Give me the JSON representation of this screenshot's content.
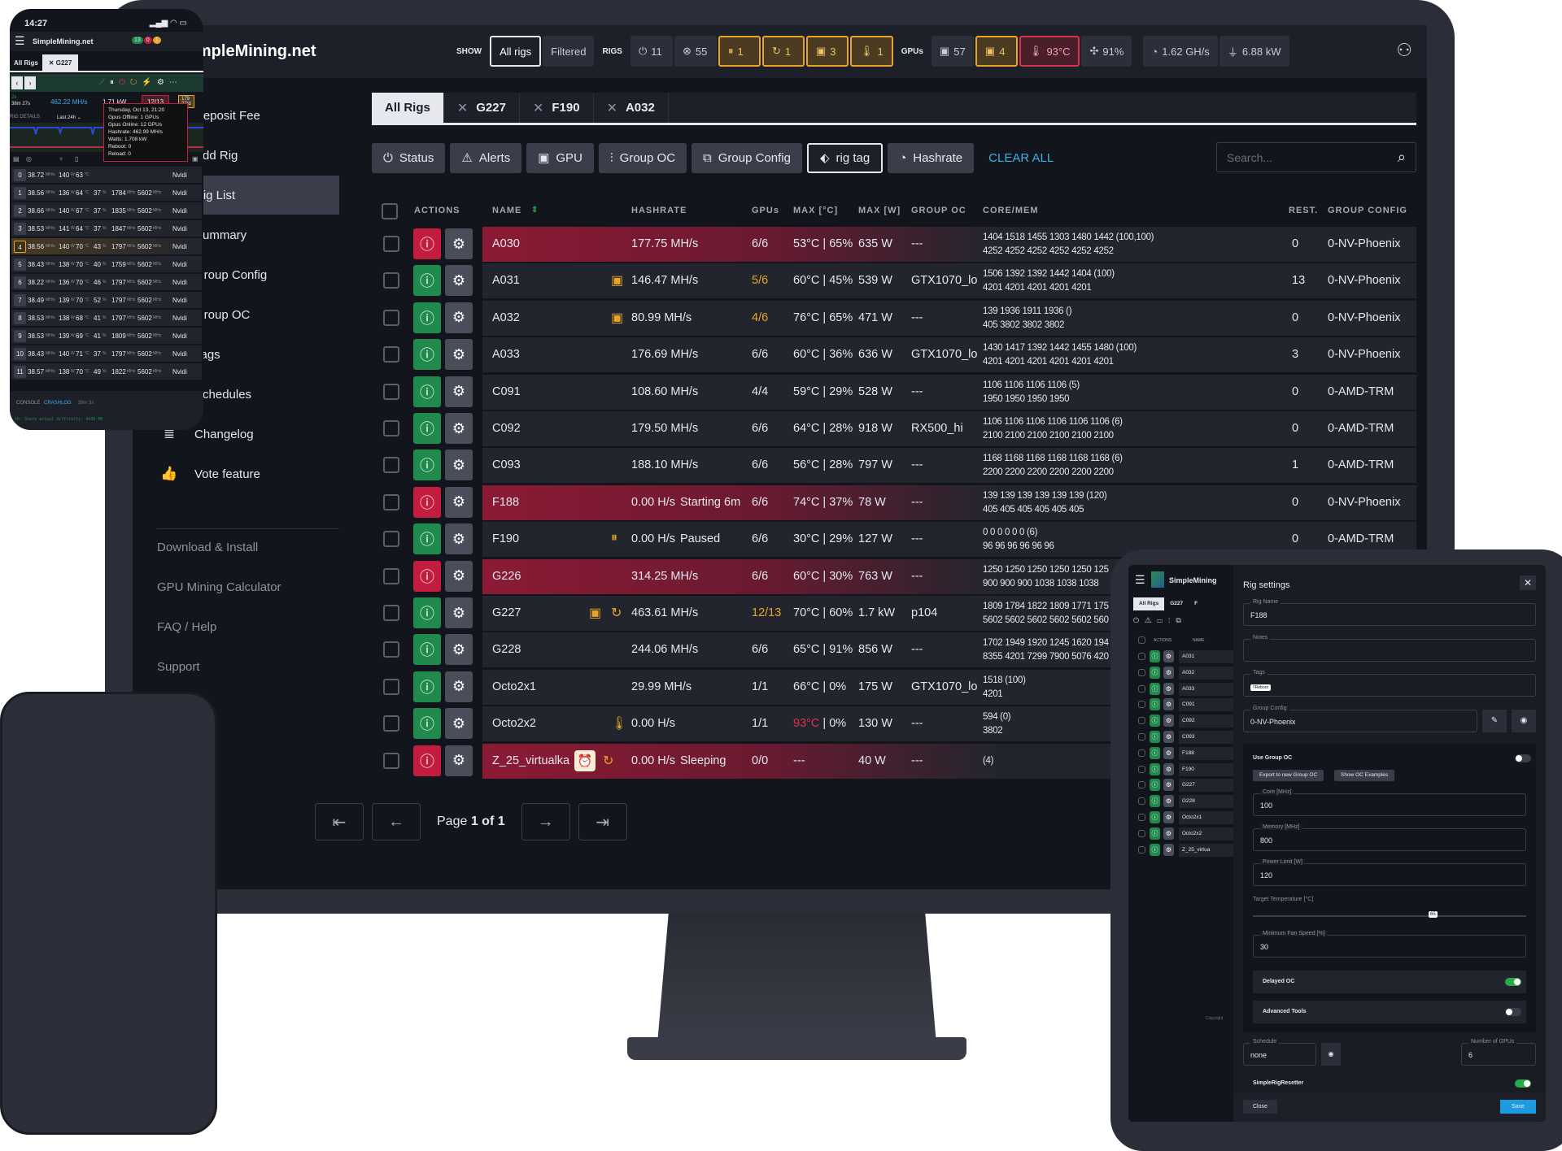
{
  "colors": {
    "accent": "#3ab0e8",
    "success": "#1f8a4c",
    "danger": "#c21d3e",
    "warning": "#e8a525",
    "background": "#13151d"
  },
  "header": {
    "brand": "SimpleMining.net",
    "show_label": "SHOW",
    "show_all": "All rigs",
    "show_filtered": "Filtered",
    "rigs_label": "RIGS",
    "rig_stats": [
      {
        "icon": "power-icon",
        "value": "11",
        "state": "normal"
      },
      {
        "icon": "offline-icon",
        "value": "55",
        "state": "normal"
      },
      {
        "icon": "pause-icon",
        "value": "1",
        "state": "warning"
      },
      {
        "icon": "reboot-icon",
        "value": "1",
        "state": "warning"
      },
      {
        "icon": "gpu-icon",
        "value": "3",
        "state": "warning"
      },
      {
        "icon": "thermometer-icon",
        "value": "1",
        "state": "warning"
      }
    ],
    "gpus_label": "GPUs",
    "gpu_stats": [
      {
        "icon": "gpu-icon",
        "value": "57",
        "state": "normal"
      },
      {
        "icon": "gpu-icon",
        "value": "4",
        "state": "warning"
      },
      {
        "icon": "temperature-high-icon",
        "value": "93°C",
        "state": "danger"
      },
      {
        "icon": "fan-icon",
        "value": "91%",
        "state": "normal"
      }
    ],
    "totals": [
      {
        "icon": "speedometer-icon",
        "value": "1.62 GH/s"
      },
      {
        "icon": "plug-icon",
        "value": "6.88 kW"
      }
    ]
  },
  "sidebar": {
    "items": [
      {
        "icon": "wallet-icon",
        "label": "Deposit Fee"
      },
      {
        "icon": "plus-icon",
        "label": "Add Rig"
      },
      {
        "icon": "list-icon",
        "label": "Rig List",
        "active": true
      },
      {
        "icon": "chart-icon",
        "label": "Summary"
      },
      {
        "icon": "group-config-icon",
        "label": "Group Config"
      },
      {
        "icon": "sliders-icon",
        "label": "Group OC"
      },
      {
        "icon": "tag-icon",
        "label": "Tags"
      },
      {
        "icon": "alarm-clock-icon",
        "label": "Schedules"
      },
      {
        "icon": "changelog-icon",
        "label": "Changelog"
      },
      {
        "icon": "thumbs-up-icon",
        "label": "Vote feature"
      }
    ],
    "links": [
      "Download & Install",
      "GPU Mining Calculator",
      "FAQ / Help",
      "Support"
    ]
  },
  "tabs": [
    {
      "label": "All Rigs",
      "active": true
    },
    {
      "label": "G227"
    },
    {
      "label": "F190"
    },
    {
      "label": "A032"
    }
  ],
  "filters": [
    {
      "icon": "power-icon",
      "label": "Status"
    },
    {
      "icon": "alert-icon",
      "label": "Alerts"
    },
    {
      "icon": "gpu-icon",
      "label": "GPU"
    },
    {
      "icon": "sliders-icon",
      "label": "Group OC"
    },
    {
      "icon": "group-config-icon",
      "label": "Group Config"
    },
    {
      "icon": "tag-icon",
      "label": "rig tag",
      "active": true
    },
    {
      "icon": "speedometer-icon",
      "label": "Hashrate"
    }
  ],
  "clear_all": "CLEAR ALL",
  "search": {
    "placeholder": "Search...",
    "value": ""
  },
  "table": {
    "columns": [
      "ACTIONS",
      "NAME",
      "HASHRATE",
      "GPUs",
      "MAX [°C]",
      "MAX [W]",
      "GROUP OC",
      "CORE/MEM",
      "REST.",
      "GROUP CONFIG"
    ],
    "rows": [
      {
        "name": "A030",
        "status": "red",
        "icons": [],
        "hashrate": "177.75 MH/s",
        "note": "",
        "gpus": "6/6",
        "gpus_warn": false,
        "temp": "53°C",
        "fan": "65%",
        "power": "635 W",
        "group_oc": "---",
        "core": "1404 1518 1455 1303 1480 1442 (100,100)",
        "mem": "4252 4252 4252 4252 4252 4252",
        "rest": "0",
        "group_config": "0-NV-Phoenix"
      },
      {
        "name": "A031",
        "status": "green",
        "icons": [
          "gpu-warning-icon"
        ],
        "hashrate": "146.47 MH/s",
        "note": "",
        "gpus": "5/6",
        "gpus_warn": true,
        "temp": "60°C",
        "fan": "45%",
        "power": "539 W",
        "group_oc": "GTX1070_lo",
        "core": "1506 1392 1392 1442 1404 (100)",
        "mem": "4201 4201 4201 4201 4201",
        "rest": "13",
        "group_config": "0-NV-Phoenix"
      },
      {
        "name": "A032",
        "status": "green",
        "icons": [
          "gpu-warning-icon"
        ],
        "hashrate": "80.99 MH/s",
        "note": "",
        "gpus": "4/6",
        "gpus_warn": true,
        "temp": "76°C",
        "fan": "65%",
        "power": "471 W",
        "group_oc": "---",
        "core": "139 1936 1911 1936 ()",
        "mem": "405 3802 3802 3802",
        "rest": "0",
        "group_config": "0-NV-Phoenix"
      },
      {
        "name": "A033",
        "status": "green",
        "icons": [],
        "hashrate": "176.69 MH/s",
        "note": "",
        "gpus": "6/6",
        "gpus_warn": false,
        "temp": "60°C",
        "fan": "36%",
        "power": "636 W",
        "group_oc": "GTX1070_lo",
        "core": "1430 1417 1392 1442 1455 1480 (100)",
        "mem": "4201 4201 4201 4201 4201 4201",
        "rest": "3",
        "group_config": "0-NV-Phoenix"
      },
      {
        "name": "C091",
        "status": "green",
        "icons": [],
        "hashrate": "108.60 MH/s",
        "note": "",
        "gpus": "4/4",
        "gpus_warn": false,
        "temp": "59°C",
        "fan": "29%",
        "power": "528 W",
        "group_oc": "---",
        "core": "1106 1106 1106 1106 (5)",
        "mem": "1950 1950 1950 1950",
        "rest": "0",
        "group_config": "0-AMD-TRM"
      },
      {
        "name": "C092",
        "status": "green",
        "icons": [],
        "hashrate": "179.50 MH/s",
        "note": "",
        "gpus": "6/6",
        "gpus_warn": false,
        "temp": "64°C",
        "fan": "28%",
        "power": "918 W",
        "group_oc": "RX500_hi",
        "core": "1106 1106 1106 1106 1106 1106 (6)",
        "mem": "2100 2100 2100 2100 2100 2100",
        "rest": "0",
        "group_config": "0-AMD-TRM"
      },
      {
        "name": "C093",
        "status": "green",
        "icons": [],
        "hashrate": "188.10 MH/s",
        "note": "",
        "gpus": "6/6",
        "gpus_warn": false,
        "temp": "56°C",
        "fan": "28%",
        "power": "797 W",
        "group_oc": "---",
        "core": "1168 1168 1168 1168 1168 1168 (6)",
        "mem": "2200 2200 2200 2200 2200 2200",
        "rest": "1",
        "group_config": "0-AMD-TRM"
      },
      {
        "name": "F188",
        "status": "red",
        "icons": [],
        "hashrate": "0.00 H/s",
        "note": "Starting 6m",
        "gpus": "6/6",
        "gpus_warn": false,
        "temp": "74°C",
        "fan": "37%",
        "power": "78 W",
        "group_oc": "---",
        "core": "139 139 139 139 139 139 (120)",
        "mem": "405 405 405 405 405 405",
        "rest": "0",
        "group_config": "0-NV-Phoenix"
      },
      {
        "name": "F190",
        "status": "green",
        "icons": [
          "pause-icon"
        ],
        "hashrate": "0.00 H/s",
        "note": "Paused",
        "gpus": "6/6",
        "gpus_warn": false,
        "temp": "30°C",
        "fan": "29%",
        "power": "127 W",
        "group_oc": "---",
        "core": "0 0 0 0 0 0 (6)",
        "mem": "96 96 96 96 96 96",
        "rest": "0",
        "group_config": "0-AMD-TRM"
      },
      {
        "name": "G226",
        "status": "red",
        "icons": [],
        "hashrate": "314.25 MH/s",
        "note": "",
        "gpus": "6/6",
        "gpus_warn": false,
        "temp": "60°C",
        "fan": "30%",
        "power": "763 W",
        "group_oc": "---",
        "core": "1250 1250 1250 1250 1250 125",
        "mem": "900 900 900 1038 1038 1038",
        "rest": "",
        "group_config": ""
      },
      {
        "name": "G227",
        "status": "green",
        "icons": [
          "gpu-warning-icon",
          "reload-icon"
        ],
        "hashrate": "463.61 MH/s",
        "note": "",
        "gpus": "12/13",
        "gpus_warn": true,
        "temp": "70°C",
        "fan": "60%",
        "power": "1.7 kW",
        "group_oc": "p104",
        "core": "1809 1784 1822 1809 1771 175",
        "mem": "5602 5602 5602 5602 5602 560",
        "rest": "",
        "group_config": ""
      },
      {
        "name": "G228",
        "status": "green",
        "icons": [],
        "hashrate": "244.06 MH/s",
        "note": "",
        "gpus": "6/6",
        "gpus_warn": false,
        "temp": "65°C",
        "fan": "91%",
        "power": "856 W",
        "group_oc": "---",
        "core": "1702 1949 1920 1245 1620 194",
        "mem": "8355 4201 7299 7900 5076 420",
        "rest": "",
        "group_config": ""
      },
      {
        "name": "Octo2x1",
        "status": "green",
        "icons": [],
        "hashrate": "29.99 MH/s",
        "note": "",
        "gpus": "1/1",
        "gpus_warn": false,
        "temp": "66°C",
        "fan": "0%",
        "power": "175 W",
        "group_oc": "GTX1070_lo",
        "core": "1518 (100)",
        "mem": "4201",
        "rest": "",
        "group_config": ""
      },
      {
        "name": "Octo2x2",
        "status": "green",
        "icons": [
          "temperature-high-icon"
        ],
        "hashrate": "0.00 H/s",
        "note": "",
        "gpus": "1/1",
        "gpus_warn": false,
        "temp": "93°C",
        "temp_warn": true,
        "fan": "0%",
        "power": "130 W",
        "group_oc": "---",
        "core": "594 (0)",
        "mem": "3802",
        "rest": "",
        "group_config": ""
      },
      {
        "name": "Z_25_virtualka",
        "status": "red",
        "icons": [
          "sleep-alarm-icon",
          "reload-icon"
        ],
        "hashrate": "0.00 H/s",
        "note": "Sleeping",
        "gpus": "0/0",
        "gpus_warn": false,
        "temp": "---",
        "fan": "",
        "power": "40 W",
        "group_oc": "---",
        "core": "(4)",
        "mem": "",
        "rest": "",
        "group_config": ""
      }
    ]
  },
  "pagination": {
    "page_label": "Page",
    "page_value": "1 of 1"
  },
  "phone": {
    "time": "14:27",
    "brand": "SimpleMining.net",
    "badges": [
      "13",
      "0",
      "1"
    ],
    "tabs": [
      "All Rigs",
      "G227"
    ],
    "uptime": "2s",
    "runtime": "38m 27s",
    "hashrate": "462.22 MH/s",
    "power": "1.71 kW",
    "gpus": "12/13",
    "reboots": "179",
    "reboots_sub": "27/d",
    "details_label": "RIG DETAILS",
    "range": "Last 24h",
    "tooltip": [
      "Thursday, Oct 13, 21:20",
      "Gpus Offline: 1 GPUs",
      "Gpus Online: 12 GPUs",
      "Hashrate: 462.99 MH/s",
      "Watts: 1.708 kW",
      "Reboot: 0",
      "Reload: 0"
    ],
    "gpu_rows": [
      [
        "0",
        "38.72",
        "140",
        "63",
        "",
        "",
        "",
        "Nvidi"
      ],
      [
        "1",
        "38.56",
        "136",
        "64",
        "37",
        "1784",
        "5602",
        "Nvidi"
      ],
      [
        "2",
        "38.66",
        "140",
        "67",
        "37",
        "1835",
        "5602",
        "Nvidi"
      ],
      [
        "3",
        "38.53",
        "141",
        "64",
        "37",
        "1847",
        "5602",
        "Nvidi"
      ],
      [
        "4",
        "38.56",
        "140",
        "70",
        "43",
        "1797",
        "5602",
        "Nvidi"
      ],
      [
        "5",
        "38.43",
        "138",
        "70",
        "40",
        "1759",
        "5602",
        "Nvidi"
      ],
      [
        "6",
        "38.22",
        "136",
        "70",
        "46",
        "1797",
        "5602",
        "Nvidi"
      ],
      [
        "7",
        "38.49",
        "139",
        "70",
        "52",
        "1797",
        "5602",
        "Nvidi"
      ],
      [
        "8",
        "38.53",
        "138",
        "68",
        "41",
        "1797",
        "5602",
        "Nvidi"
      ],
      [
        "9",
        "38.53",
        "139",
        "69",
        "41",
        "1809",
        "5602",
        "Nvidi"
      ],
      [
        "10",
        "38.43",
        "140",
        "71",
        "37",
        "1797",
        "5602",
        "Nvidi"
      ],
      [
        "11",
        "38.57",
        "138",
        "70",
        "49",
        "1822",
        "5602",
        "Nvidi"
      ]
    ],
    "units": {
      "hash": "MH/s",
      "power": "W",
      "temp": "°C",
      "fan": "%",
      "clock": "MHz"
    },
    "console": "CONSOLE",
    "crashlog": "CRASHLOG",
    "crashlog_age": "· 39m 3s",
    "log_line": "th: Share actual difficulty: 4436 MH"
  },
  "tablet": {
    "brand": "SimpleMining",
    "tabs": [
      "All Rigs",
      "G227",
      "F"
    ],
    "list_header": [
      "ACTIONS",
      "NAME"
    ],
    "rigs": [
      "A031",
      "A032",
      "A033",
      "C091",
      "C092",
      "C093",
      "F188",
      "F190",
      "G227",
      "G228",
      "Octo2x1",
      "Octo2x2",
      "Z_25_virtua"
    ],
    "copyright": "Copyright",
    "settings": {
      "title": "Rig settings",
      "rig_name_label": "Rig Name",
      "rig_name": "F188",
      "notes_label": "Notes",
      "notes": "",
      "tags_label": "Tags",
      "tag": "!!Reboot",
      "group_config_label": "Group Config",
      "group_config": "0-NV-Phoenix",
      "use_group_oc": "Use Group OC",
      "use_group_oc_on": false,
      "export_btn": "Export to new Group OC",
      "examples_btn": "Show OC Examples",
      "core_label": "Core [MHz]",
      "core": "100",
      "memory_label": "Memory [MHz]",
      "memory": "800",
      "power_label": "Power Limit [W]",
      "power": "120",
      "target_temp_label": "Target Temperature [°C]",
      "target_temp": 65,
      "min_fan_label": "Minimum Fan Speed [%]",
      "min_fan": "30",
      "delayed_oc": "Delayed OC",
      "delayed_oc_on": true,
      "advanced_tools": "Advanced Tools",
      "advanced_tools_on": false,
      "schedule_label": "Schedule",
      "schedule": "none",
      "num_gpus_label": "Number of GPUs",
      "num_gpus": "6",
      "resetter": "SimpleRigResetter",
      "resetter_on": true,
      "close": "Close",
      "save": "Save"
    }
  }
}
